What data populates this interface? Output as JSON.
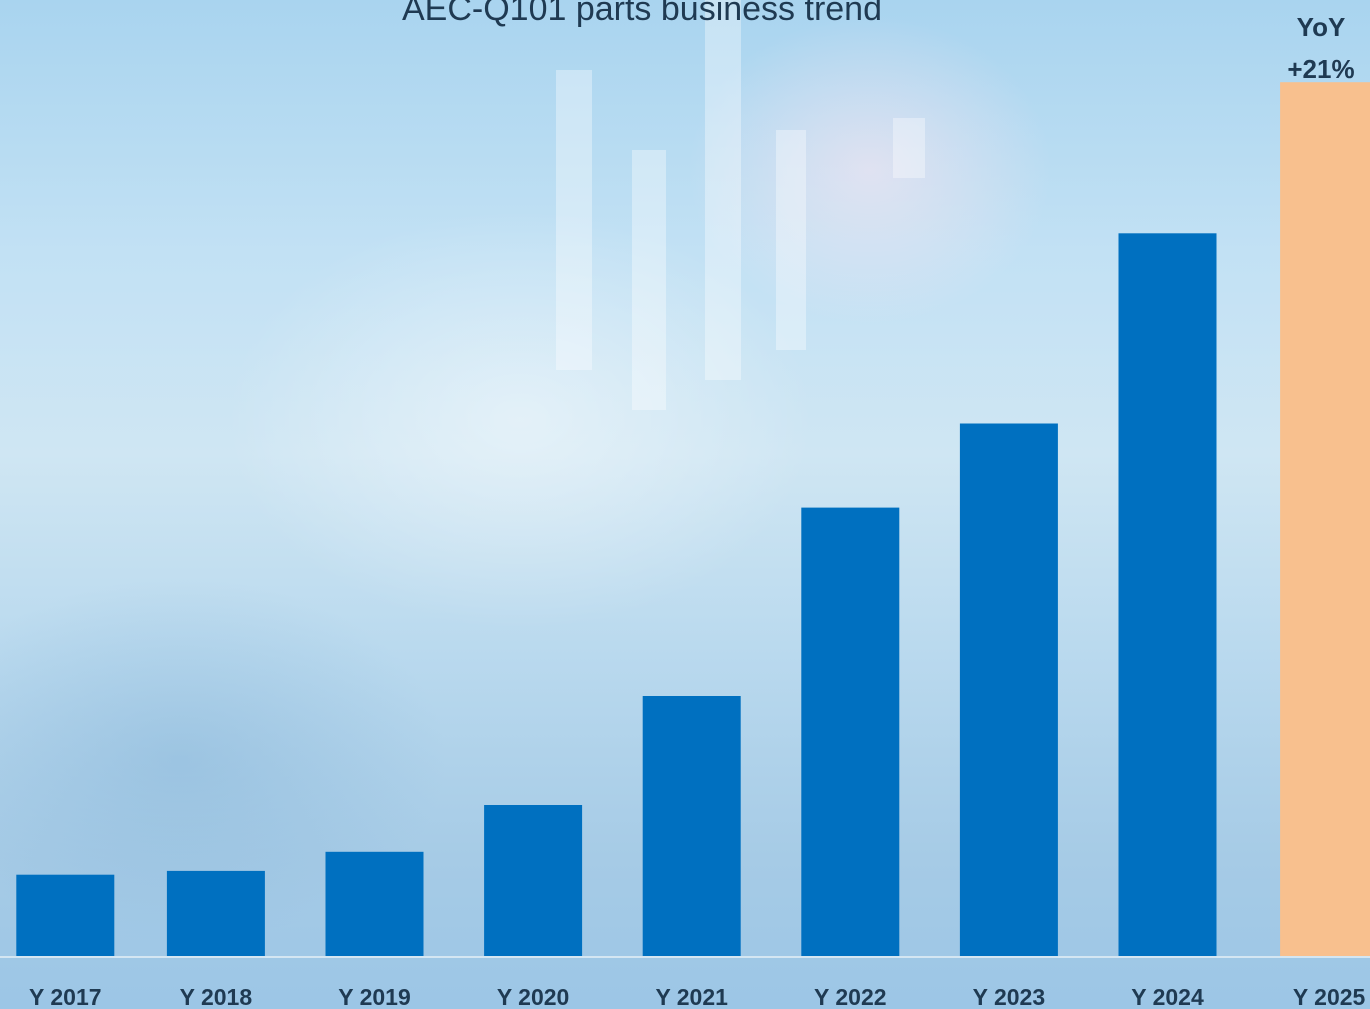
{
  "chart_data": {
    "type": "bar",
    "title": "AEC-Q101 parts business trend",
    "categories": [
      "Y 2017",
      "Y 2018",
      "Y 2019",
      "Y 2020",
      "Y 2021",
      "Y 2022",
      "Y 2023",
      "Y 2024",
      "Y 2025"
    ],
    "values": [
      8.5,
      8.9,
      10.9,
      15.8,
      27.2,
      46.9,
      55.7,
      75.6,
      91.4
    ],
    "bar_colors": [
      "#0070c0",
      "#0070c0",
      "#0070c0",
      "#0070c0",
      "#0070c0",
      "#0070c0",
      "#0070c0",
      "#0070c0",
      "#f8c08e"
    ],
    "ylim": [
      0,
      100
    ],
    "grid": false,
    "axis_values_shown": false,
    "annotation": {
      "line1": "YoY",
      "line2": "+21%"
    }
  }
}
